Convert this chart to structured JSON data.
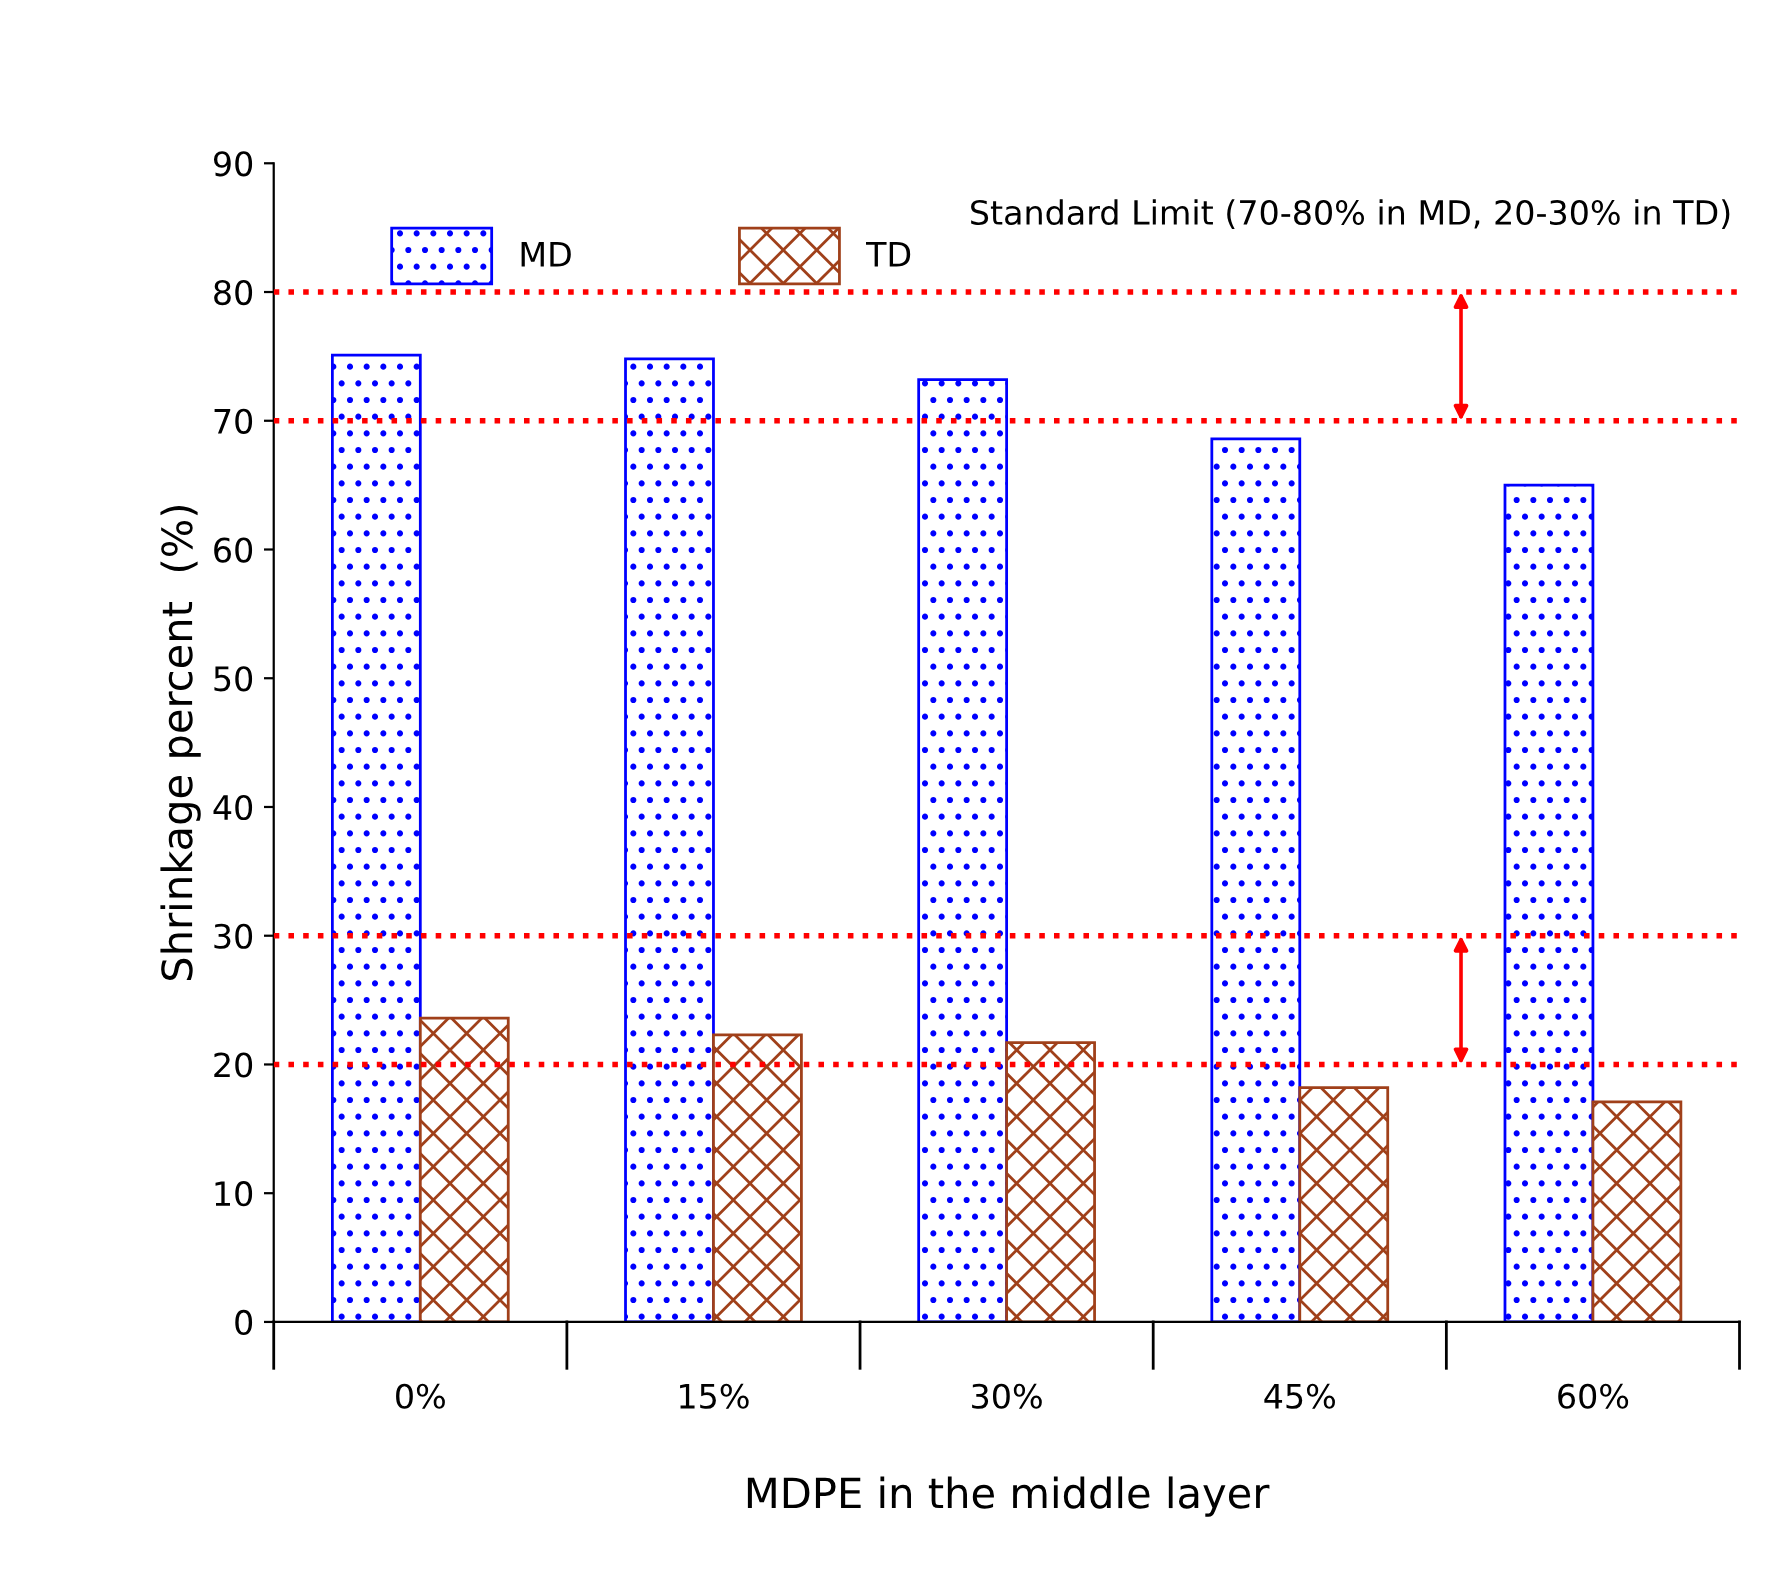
{
  "chart_data": {
    "type": "bar",
    "xlabel": "MDPE in the middle layer",
    "ylabel": "Shrinkage percent  (%)",
    "categories": [
      "0%",
      "15%",
      "30%",
      "45%",
      "60%"
    ],
    "series": [
      {
        "name": "MD",
        "color": "#0000ff",
        "values": [
          75.1,
          74.8,
          73.2,
          68.6,
          65.0
        ]
      },
      {
        "name": "TD",
        "color": "#a0401a",
        "values": [
          23.6,
          22.3,
          21.7,
          18.2,
          17.1
        ]
      }
    ],
    "ylim": [
      0,
      90
    ],
    "yticks": [
      0,
      10,
      20,
      30,
      40,
      50,
      60,
      70,
      80,
      90
    ],
    "grid": false,
    "legend": "top left",
    "ref_lines": [
      {
        "axis": "y",
        "value": 80,
        "color": "#ff0000",
        "line_style": "dotted"
      },
      {
        "axis": "y",
        "value": 70,
        "color": "#ff0000",
        "line_style": "dotted"
      },
      {
        "axis": "y",
        "value": 30,
        "color": "#ff0000",
        "line_style": "dotted"
      },
      {
        "axis": "y",
        "value": 20,
        "color": "#ff0000",
        "line_style": "dotted"
      }
    ],
    "annotations": [
      "Standard Limit (70-80% in MD, 20-30% in TD)"
    ]
  }
}
